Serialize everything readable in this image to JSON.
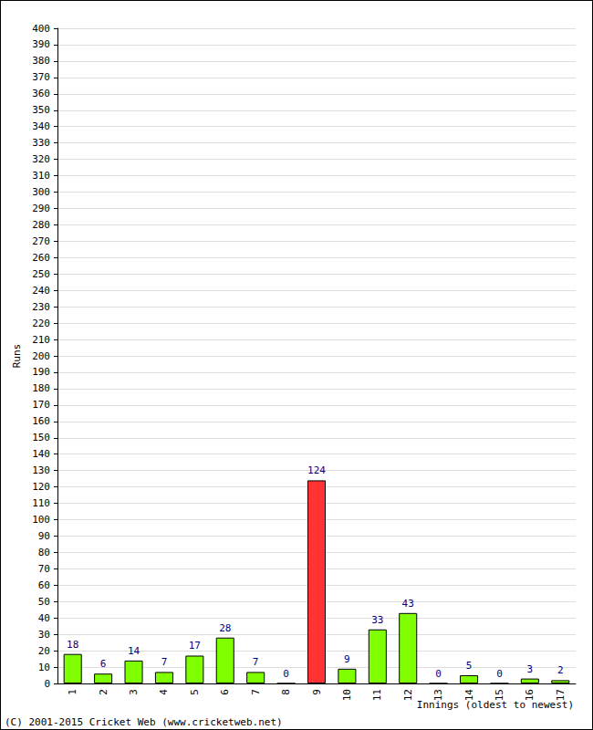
{
  "chart_data": {
    "type": "bar",
    "y_label": "Runs",
    "x_label": "Innings (oldest to newest)",
    "annotations": [
      "(C) 2001-2015 Cricket Web (www.cricketweb.net)"
    ],
    "categories": [
      "1",
      "2",
      "3",
      "4",
      "5",
      "6",
      "7",
      "8",
      "9",
      "10",
      "11",
      "12",
      "13",
      "14",
      "15",
      "16",
      "17"
    ],
    "values": [
      18,
      6,
      14,
      7,
      17,
      28,
      7,
      0,
      124,
      9,
      33,
      43,
      0,
      5,
      0,
      3,
      2
    ],
    "colors": [
      "#80ff00",
      "#80ff00",
      "#80ff00",
      "#80ff00",
      "#80ff00",
      "#80ff00",
      "#80ff00",
      "#80ff00",
      "#ff3333",
      "#80ff00",
      "#80ff00",
      "#80ff00",
      "#80ff00",
      "#80ff00",
      "#80ff00",
      "#80ff00",
      "#80ff00"
    ],
    "ylim": [
      0,
      400
    ],
    "yticks": [
      0,
      10,
      20,
      30,
      40,
      50,
      60,
      70,
      80,
      90,
      100,
      110,
      120,
      130,
      140,
      150,
      160,
      170,
      180,
      190,
      200,
      210,
      220,
      230,
      240,
      250,
      260,
      270,
      280,
      290,
      300,
      310,
      320,
      330,
      340,
      350,
      360,
      370,
      380,
      390,
      400
    ],
    "grid": true,
    "data_labels": true
  }
}
